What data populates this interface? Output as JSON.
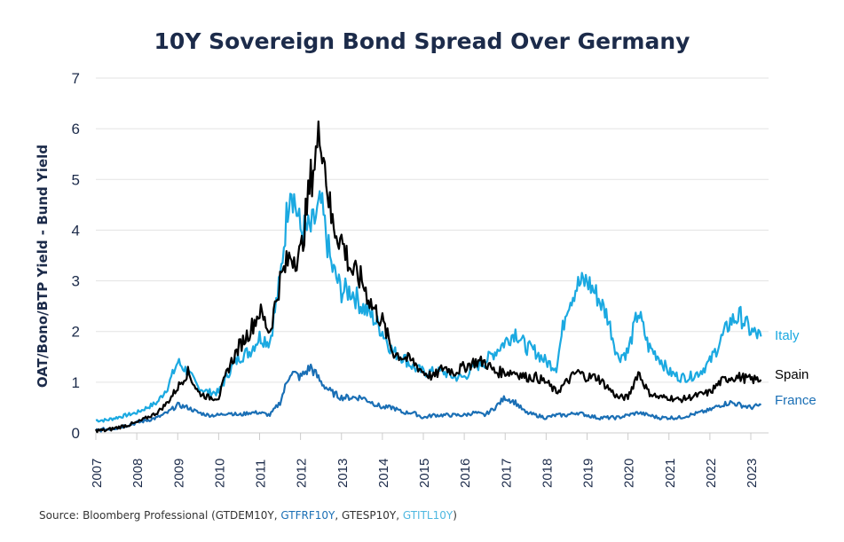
{
  "chart_data": {
    "type": "line",
    "title": "10Y Sovereign Bond Spread Over Germany",
    "ylabel": "OAT/Bono/BTP Yield - Bund Yield",
    "xlabel": "",
    "ylim": [
      0,
      7
    ],
    "yticks": [
      "0",
      "1",
      "2",
      "3",
      "4",
      "5",
      "6",
      "7"
    ],
    "xlim": [
      2007,
      2023.4
    ],
    "xticks": [
      "2007",
      "2008",
      "2009",
      "2010",
      "2011",
      "2012",
      "2013",
      "2014",
      "2015",
      "2016",
      "2017",
      "2018",
      "2019",
      "2020",
      "2021",
      "2022",
      "2023"
    ],
    "grid": "horizontal",
    "legend": "right, inline labels at line ends",
    "x_start": 2007,
    "x_step": 0.25,
    "series": [
      {
        "name": "Italy",
        "color": "#1ba9e1",
        "values": [
          0.25,
          0.25,
          0.3,
          0.35,
          0.4,
          0.5,
          0.6,
          0.9,
          1.4,
          1.2,
          0.9,
          0.8,
          0.8,
          1.2,
          1.5,
          1.6,
          1.9,
          1.8,
          3.0,
          5.0,
          4.0,
          4.0,
          4.5,
          3.3,
          2.8,
          2.8,
          2.5,
          2.3,
          2.0,
          1.6,
          1.5,
          1.3,
          1.2,
          1.2,
          1.2,
          1.1,
          1.1,
          1.3,
          1.4,
          1.6,
          1.8,
          2.0,
          1.7,
          1.6,
          1.4,
          1.3,
          2.5,
          2.9,
          3.0,
          2.7,
          2.3,
          1.5,
          1.6,
          2.4,
          1.7,
          1.5,
          1.2,
          1.1,
          1.1,
          1.2,
          1.4,
          1.8,
          2.2,
          2.3,
          2.0,
          1.9
        ]
      },
      {
        "name": "Spain",
        "color": "#000000",
        "values": [
          0.05,
          0.05,
          0.1,
          0.15,
          0.2,
          0.3,
          0.4,
          0.6,
          0.9,
          1.2,
          0.8,
          0.7,
          0.7,
          1.3,
          1.7,
          2.0,
          2.4,
          2.0,
          3.0,
          3.5,
          3.5,
          5.0,
          6.0,
          4.2,
          3.8,
          3.2,
          3.0,
          2.5,
          2.2,
          1.6,
          1.5,
          1.4,
          1.2,
          1.1,
          1.3,
          1.2,
          1.3,
          1.4,
          1.4,
          1.2,
          1.2,
          1.2,
          1.1,
          1.1,
          1.0,
          0.8,
          1.0,
          1.2,
          1.1,
          1.1,
          0.9,
          0.7,
          0.7,
          1.2,
          0.8,
          0.7,
          0.7,
          0.65,
          0.7,
          0.75,
          0.8,
          1.0,
          1.1,
          1.1,
          1.05,
          1.05
        ]
      },
      {
        "name": "France",
        "color": "#1a6fb5",
        "values": [
          0.05,
          0.07,
          0.1,
          0.15,
          0.2,
          0.25,
          0.3,
          0.4,
          0.55,
          0.5,
          0.4,
          0.35,
          0.35,
          0.4,
          0.35,
          0.4,
          0.4,
          0.35,
          0.6,
          1.2,
          1.1,
          1.3,
          1.0,
          0.8,
          0.7,
          0.7,
          0.7,
          0.6,
          0.5,
          0.5,
          0.4,
          0.4,
          0.3,
          0.35,
          0.35,
          0.35,
          0.35,
          0.4,
          0.35,
          0.5,
          0.7,
          0.6,
          0.4,
          0.35,
          0.3,
          0.35,
          0.35,
          0.4,
          0.35,
          0.3,
          0.3,
          0.3,
          0.35,
          0.4,
          0.35,
          0.3,
          0.3,
          0.3,
          0.35,
          0.4,
          0.45,
          0.55,
          0.6,
          0.55,
          0.5,
          0.55
        ]
      }
    ]
  },
  "source": {
    "prefix": "Source: Bloomberg Professional (GTDEM10Y, ",
    "fr": "GTFRF10Y",
    "mid": ", GTESP10Y, ",
    "it": "GTITL10Y",
    "suffix": ")",
    "fr_color": "#1a6fb5",
    "it_color": "#4fb8e0"
  }
}
